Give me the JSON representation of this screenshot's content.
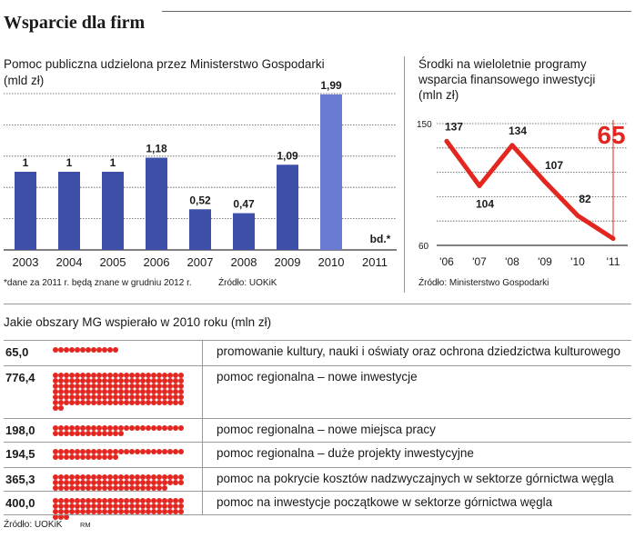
{
  "header": {
    "title": "Wsparcie dla firm"
  },
  "chart_data": [
    {
      "type": "bar",
      "title": "Pomoc publiczna udzielona przez Ministerstwo Gospodarki (mld zł)",
      "title_lines": [
        "Pomoc publiczna udzielona przez Ministerstwo Gospodarki",
        "(mld zł)"
      ],
      "categories": [
        "2003",
        "2004",
        "2005",
        "2006",
        "2007",
        "2008",
        "2009",
        "2010",
        "2011"
      ],
      "values": [
        1,
        1,
        1,
        1.18,
        0.52,
        0.47,
        1.09,
        1.99,
        null
      ],
      "value_labels": [
        "1",
        "1",
        "1",
        "1,18",
        "0,52",
        "0,47",
        "1,09",
        "1,99",
        "bd.*"
      ],
      "ylim": [
        0,
        2
      ],
      "grid": true,
      "bar_color": "#3d4fa8",
      "highlight_color": "#6a7bd4",
      "footnote": "*dane za 2011 r. będą znane w grudniu 2012 r.",
      "source": "Źródło: UOKiK"
    },
    {
      "type": "line",
      "title": "Środki na wieloletnie programy wsparcia finansowego inwestycji (mln zł)",
      "title_lines": [
        "Środki na wieloletnie programy",
        "wsparcia finansowego inwestycji",
        "(mln zł)"
      ],
      "x": [
        "'06",
        "'07",
        "'08",
        "'09",
        "'10",
        "'11"
      ],
      "values": [
        137,
        104,
        134,
        107,
        82,
        65
      ],
      "value_labels": [
        "137",
        "104",
        "134",
        "107",
        "82",
        "65"
      ],
      "ylim": [
        60,
        150
      ],
      "yticks": [
        "150",
        "60"
      ],
      "grid": true,
      "line_color": "#e32620",
      "source": "Źródło: Ministerstwo Gospodarki"
    },
    {
      "type": "table",
      "title": "Jakie obszary MG wspierało w 2010 roku (mln zł)",
      "rows": [
        {
          "value": 65.0,
          "label": "65,0",
          "description": "promowanie kultury, nauki i oświaty oraz ochrona dziedzictwa kulturowego"
        },
        {
          "value": 776.4,
          "label": "776,4",
          "description": "pomoc regionalna – nowe inwestycje"
        },
        {
          "value": 198.0,
          "label": "198,0",
          "description": "pomoc regionalna – nowe miejsca pracy"
        },
        {
          "value": 194.5,
          "label": "194,5",
          "description": "pomoc regionalna – duże projekty inwestycyjne"
        },
        {
          "value": 365.3,
          "label": "365,3",
          "description": "pomoc na pokrycie kosztów nadzwyczajnych w sektorze górnictwa węgla"
        },
        {
          "value": 400.0,
          "label": "400,0",
          "description": "pomoc na inwestycje początkowe w sektorze górnictwa węgla"
        }
      ],
      "dot_color": "#e32620",
      "source": "Źródło: UOKiK",
      "credit": "RM"
    }
  ]
}
